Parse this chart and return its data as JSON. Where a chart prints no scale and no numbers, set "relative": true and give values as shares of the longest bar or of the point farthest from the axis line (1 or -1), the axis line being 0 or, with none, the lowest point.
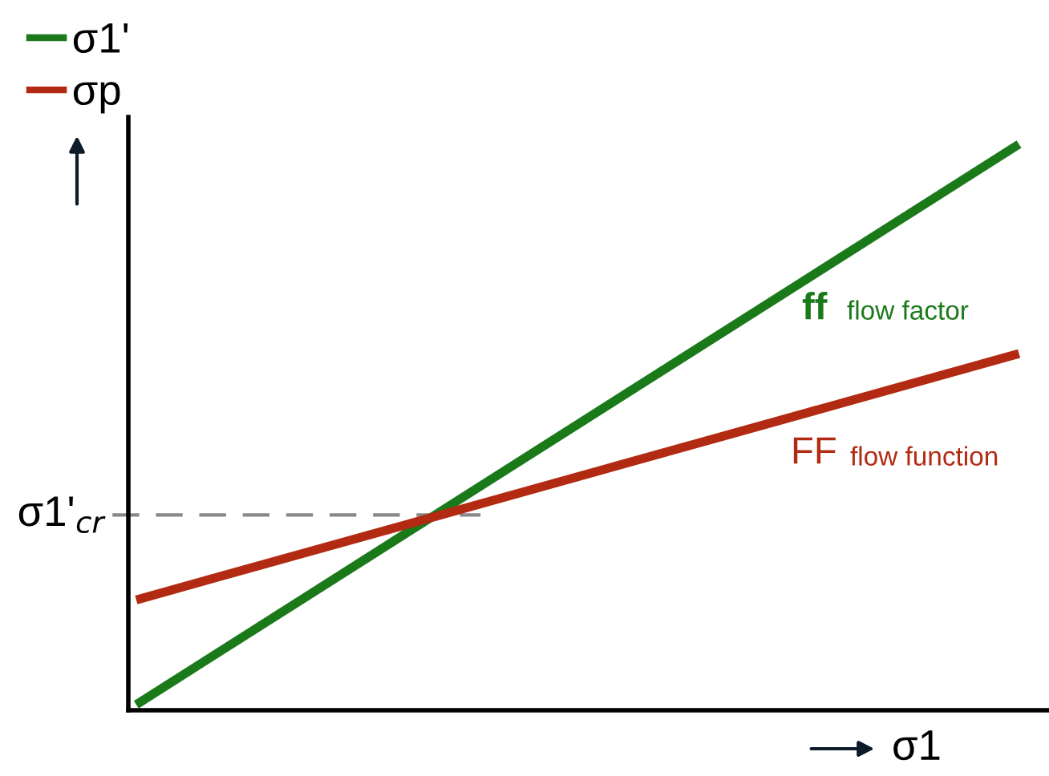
{
  "chart_data": {
    "type": "line",
    "relative": true,
    "categories": [
      null,
      null
    ],
    "xlabel": "σ1",
    "series": [
      {
        "name": "σ1'",
        "color": "#1a7a1a",
        "values": [
          0.01,
          1
        ]
      },
      {
        "name": "σp",
        "color": "#b22a12",
        "values": [
          0.195,
          0.63
        ]
      }
    ],
    "ref_lines": [
      {
        "axis": "y",
        "value": 0.345,
        "label": "σ1'$_{cr}$",
        "color": "#888888",
        "line_style": "dashed"
      }
    ],
    "annotations": [
      "ff",
      "flow factor",
      "FF",
      "flow function"
    ],
    "legend": "top left",
    "marker": "none",
    "line_style": "solid"
  }
}
